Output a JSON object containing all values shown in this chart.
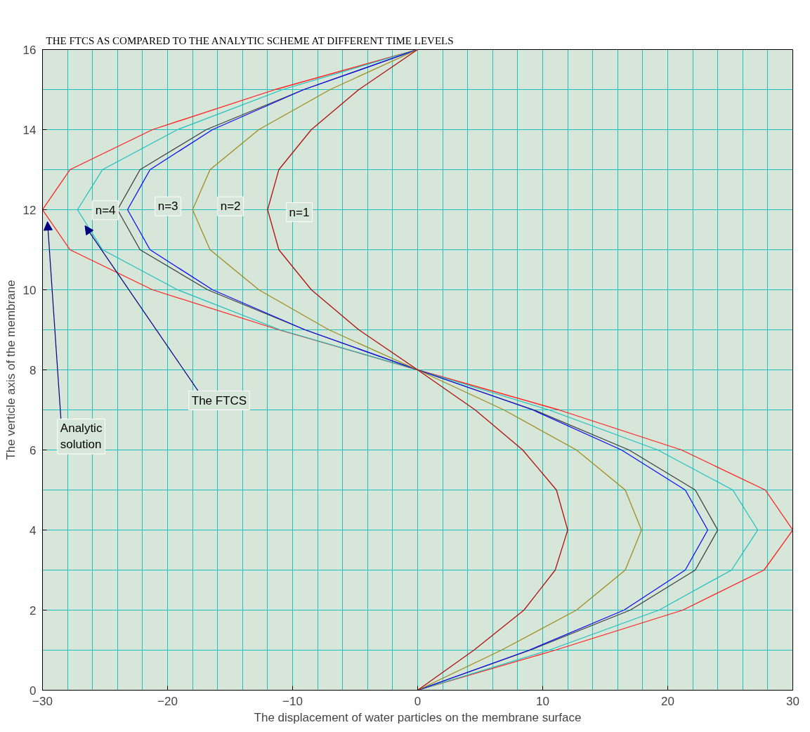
{
  "chart_data": {
    "type": "line",
    "title": "THE FTCS AS COMPARED TO THE ANALYTIC SCHEME AT DIFFERENT TIME LEVELS",
    "xlabel": "The displacement of water particles on the membrane surface",
    "ylabel": "The verticle axis of the membrane",
    "xlim": [
      -30,
      30
    ],
    "ylim": [
      0,
      16
    ],
    "xticks": [
      -30,
      -20,
      -10,
      0,
      10,
      20,
      30
    ],
    "yticks": [
      0,
      2,
      4,
      6,
      8,
      10,
      12,
      14,
      16
    ],
    "grid": true,
    "marker": "none",
    "line_style": "solid",
    "series": [
      {
        "color": "#ff2020",
        "x": [
          0,
          11.0,
          21.2,
          27.7,
          30,
          27.8,
          21.1,
          11.3,
          0,
          -11.1,
          -21.2,
          -27.8,
          -30,
          -27.8,
          -21.2,
          -11.4,
          0
        ],
        "values": [
          0,
          1,
          2,
          3,
          4,
          5,
          6,
          7,
          8,
          9,
          10,
          11,
          12,
          13,
          14,
          15,
          16
        ]
      },
      {
        "color": "#20c0c0",
        "x": [
          0,
          10.5,
          19.3,
          25.1,
          27.2,
          25.2,
          19.2,
          10.5,
          0,
          -11.0,
          -19.2,
          -25.2,
          -27.2,
          -25.2,
          -19.2,
          -10.8,
          0
        ],
        "values": [
          0,
          1,
          2,
          3,
          4,
          5,
          6,
          7,
          8,
          9,
          10,
          11,
          12,
          13,
          14,
          15,
          16
        ]
      },
      {
        "color": "#404040",
        "x": [
          0,
          9.0,
          17.0,
          22.2,
          24.0,
          22.2,
          16.9,
          9.3,
          0,
          -9.0,
          -16.8,
          -22.2,
          -24.0,
          -22.2,
          -16.9,
          -9.1,
          0
        ],
        "values": [
          0,
          1,
          2,
          3,
          4,
          5,
          6,
          7,
          8,
          9,
          10,
          11,
          12,
          13,
          14,
          15,
          16
        ]
      },
      {
        "color": "#1010f0",
        "x": [
          0,
          8.9,
          16.5,
          21.4,
          23.2,
          21.4,
          16.3,
          9.2,
          0,
          -9.0,
          -16.4,
          -21.4,
          -23.2,
          -21.4,
          -16.4,
          -9.1,
          0
        ],
        "values": [
          0,
          1,
          2,
          3,
          4,
          5,
          6,
          7,
          8,
          9,
          10,
          11,
          12,
          13,
          14,
          15,
          16
        ]
      },
      {
        "color": "#a08c20",
        "x": [
          0,
          6.7,
          12.7,
          16.6,
          17.9,
          16.6,
          12.7,
          6.9,
          0,
          -7.1,
          -12.7,
          -16.6,
          -18.0,
          -16.6,
          -12.7,
          -7.0,
          0
        ],
        "values": [
          0,
          1,
          2,
          3,
          4,
          5,
          6,
          7,
          8,
          9,
          10,
          11,
          12,
          13,
          14,
          15,
          16
        ]
      },
      {
        "color": "#b01010",
        "x": [
          0,
          4.5,
          8.5,
          11.0,
          12.0,
          11.1,
          8.4,
          4.6,
          0,
          -4.7,
          -8.5,
          -11.1,
          -12.0,
          -11.1,
          -8.5,
          -4.7,
          0
        ],
        "values": [
          0,
          1,
          2,
          3,
          4,
          5,
          6,
          7,
          8,
          9,
          10,
          11,
          12,
          13,
          14,
          15,
          16
        ]
      }
    ],
    "annotations": [
      "n=4",
      "n=3",
      "n=2",
      "n=1",
      {
        "text": "The FTCS",
        "x": -26.6,
        "y": 11.6
      },
      {
        "text": "Analytic solution",
        "x": -29.6,
        "y": 11.7
      }
    ]
  }
}
